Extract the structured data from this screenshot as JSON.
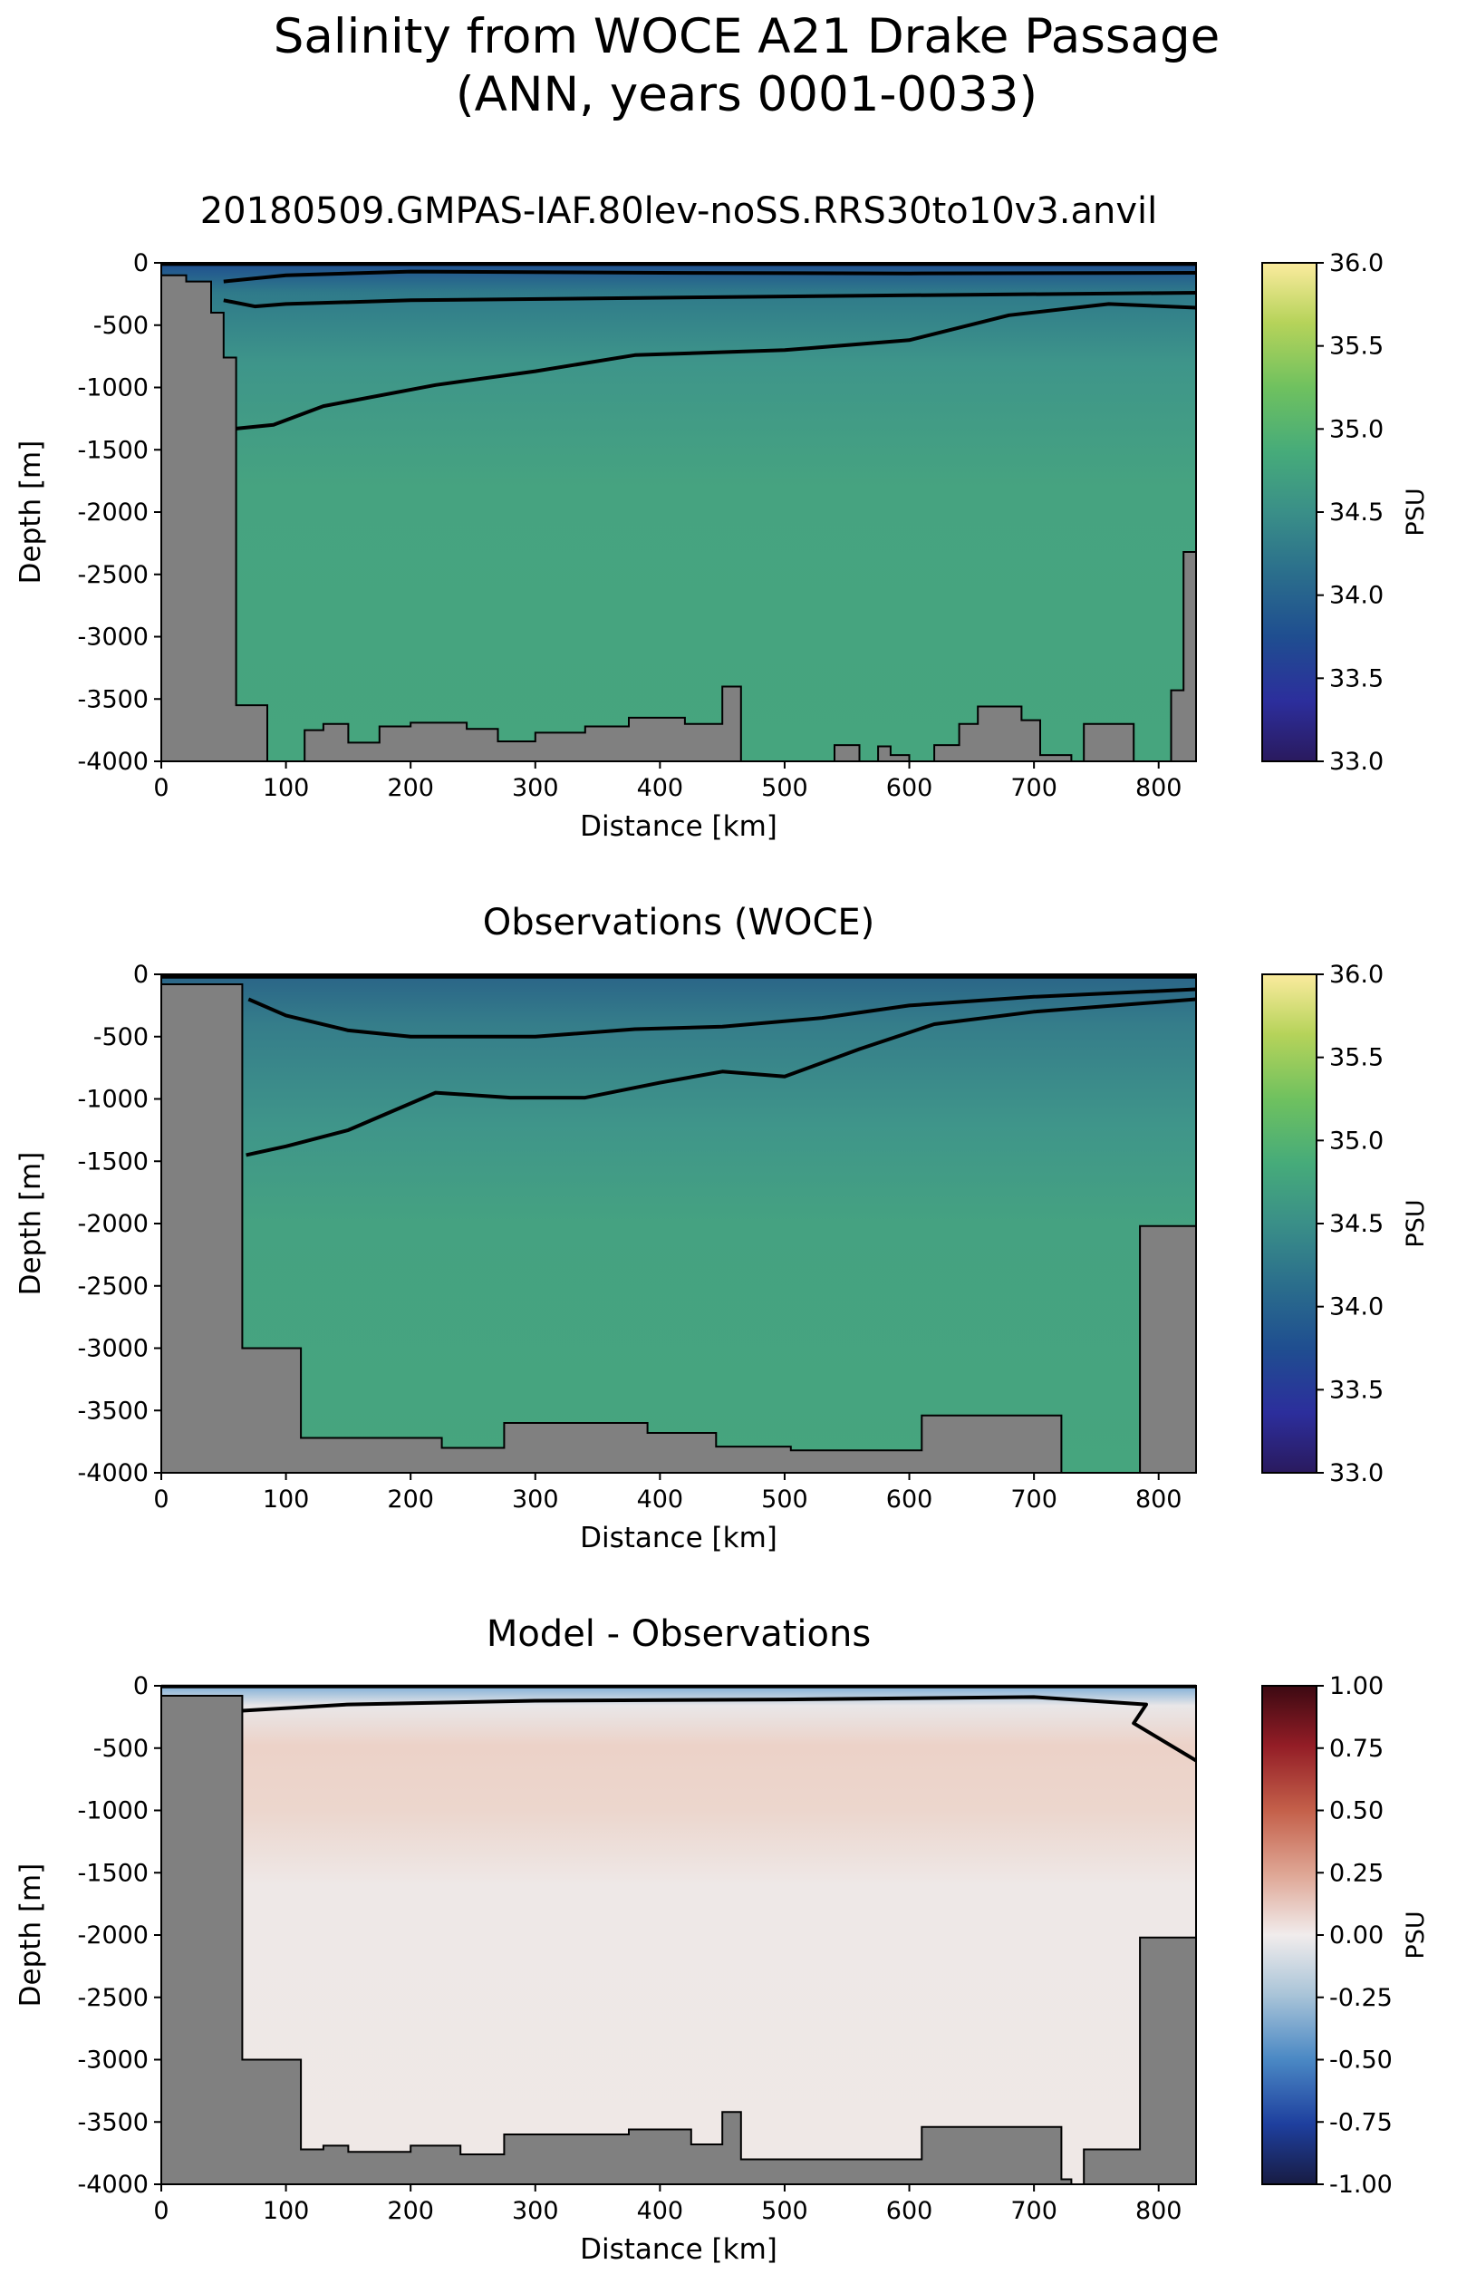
{
  "figure": {
    "title_line1": "Salinity from WOCE A21 Drake Passage",
    "title_line2": "(ANN, years 0001-0033)"
  },
  "colors": {
    "land": "#808080",
    "contour": "#000000"
  },
  "chart_data": [
    {
      "type": "heatmap",
      "title": "20180509.GMPAS-IAF.80lev-noSS.RRS30to10v3.anvil",
      "xlabel": "Distance [km]",
      "ylabel": "Depth [m]",
      "xlim": [
        0,
        830
      ],
      "ylim": [
        -4000,
        0
      ],
      "xticks": [
        "0",
        "100",
        "200",
        "300",
        "400",
        "500",
        "600",
        "700",
        "800"
      ],
      "yticks": [
        "0",
        "-500",
        "-1000",
        "-1500",
        "-2000",
        "-2500",
        "-3000",
        "-3500",
        "-4000"
      ],
      "colorbar": {
        "label": "PSU",
        "range": [
          33.0,
          36.0
        ],
        "ticks": [
          "33.0",
          "33.5",
          "34.0",
          "34.5",
          "35.0",
          "35.5",
          "36.0"
        ],
        "colormap": "haline"
      },
      "fill_value": 34.7,
      "upper_value": 34.3,
      "surface_value": 33.9,
      "contour_lines": [
        [
          [
            0,
            -10
          ],
          [
            830,
            -10
          ]
        ],
        [
          [
            50,
            -150
          ],
          [
            100,
            -100
          ],
          [
            200,
            -70
          ],
          [
            400,
            -80
          ],
          [
            600,
            -85
          ],
          [
            830,
            -80
          ]
        ],
        [
          [
            50,
            -300
          ],
          [
            75,
            -350
          ],
          [
            100,
            -330
          ],
          [
            200,
            -300
          ],
          [
            400,
            -280
          ],
          [
            600,
            -260
          ],
          [
            830,
            -240
          ]
        ],
        [
          [
            60,
            -1330
          ],
          [
            90,
            -1300
          ],
          [
            130,
            -1150
          ],
          [
            220,
            -980
          ],
          [
            300,
            -870
          ],
          [
            380,
            -740
          ],
          [
            500,
            -700
          ],
          [
            600,
            -620
          ],
          [
            680,
            -420
          ],
          [
            760,
            -330
          ],
          [
            830,
            -360
          ]
        ]
      ],
      "bathymetry": [
        [
          0,
          -100
        ],
        [
          20,
          -100
        ],
        [
          20,
          -150
        ],
        [
          40,
          -150
        ],
        [
          40,
          -400
        ],
        [
          50,
          -400
        ],
        [
          50,
          -760
        ],
        [
          60,
          -760
        ],
        [
          60,
          -3550
        ],
        [
          85,
          -3550
        ],
        [
          85,
          -4000
        ],
        [
          115,
          -4000
        ],
        [
          115,
          -3750
        ],
        [
          130,
          -3750
        ],
        [
          130,
          -3700
        ],
        [
          150,
          -3700
        ],
        [
          150,
          -3850
        ],
        [
          175,
          -3850
        ],
        [
          175,
          -3720
        ],
        [
          200,
          -3720
        ],
        [
          200,
          -3690
        ],
        [
          245,
          -3690
        ],
        [
          245,
          -3740
        ],
        [
          270,
          -3740
        ],
        [
          270,
          -3840
        ],
        [
          300,
          -3840
        ],
        [
          300,
          -3770
        ],
        [
          340,
          -3770
        ],
        [
          340,
          -3720
        ],
        [
          375,
          -3720
        ],
        [
          375,
          -3650
        ],
        [
          420,
          -3650
        ],
        [
          420,
          -3700
        ],
        [
          450,
          -3700
        ],
        [
          450,
          -3400
        ],
        [
          465,
          -3400
        ],
        [
          465,
          -4000
        ],
        [
          540,
          -4000
        ],
        [
          540,
          -3870
        ],
        [
          560,
          -3870
        ],
        [
          560,
          -4000
        ],
        [
          575,
          -4000
        ],
        [
          575,
          -3880
        ],
        [
          585,
          -3880
        ],
        [
          585,
          -3950
        ],
        [
          600,
          -3950
        ],
        [
          600,
          -4000
        ],
        [
          620,
          -4000
        ],
        [
          620,
          -3870
        ],
        [
          640,
          -3870
        ],
        [
          640,
          -3700
        ],
        [
          655,
          -3700
        ],
        [
          655,
          -3560
        ],
        [
          690,
          -3560
        ],
        [
          690,
          -3670
        ],
        [
          705,
          -3670
        ],
        [
          705,
          -3950
        ],
        [
          730,
          -3950
        ],
        [
          730,
          -4000
        ],
        [
          740,
          -4000
        ],
        [
          740,
          -3700
        ],
        [
          780,
          -3700
        ],
        [
          780,
          -4000
        ],
        [
          810,
          -4000
        ],
        [
          810,
          -3430
        ],
        [
          820,
          -3430
        ],
        [
          820,
          -2320
        ],
        [
          830,
          -2320
        ]
      ]
    },
    {
      "type": "heatmap",
      "title": "Observations (WOCE)",
      "xlabel": "Distance [km]",
      "ylabel": "Depth [m]",
      "xlim": [
        0,
        830
      ],
      "ylim": [
        -4000,
        0
      ],
      "xticks": [
        "0",
        "100",
        "200",
        "300",
        "400",
        "500",
        "600",
        "700",
        "800"
      ],
      "yticks": [
        "0",
        "-500",
        "-1000",
        "-1500",
        "-2000",
        "-2500",
        "-3000",
        "-3500",
        "-4000"
      ],
      "colorbar": {
        "label": "PSU",
        "range": [
          33.0,
          36.0
        ],
        "ticks": [
          "33.0",
          "33.5",
          "34.0",
          "34.5",
          "35.0",
          "35.5",
          "36.0"
        ],
        "colormap": "haline"
      },
      "fill_value": 34.7,
      "upper_value": 34.2,
      "surface_value": 34.0,
      "contour_lines": [
        [
          [
            0,
            -20
          ],
          [
            830,
            -20
          ]
        ],
        [
          [
            70,
            -200
          ],
          [
            100,
            -330
          ],
          [
            150,
            -450
          ],
          [
            200,
            -500
          ],
          [
            300,
            -500
          ],
          [
            380,
            -440
          ],
          [
            450,
            -420
          ],
          [
            530,
            -350
          ],
          [
            600,
            -250
          ],
          [
            700,
            -180
          ],
          [
            830,
            -120
          ]
        ],
        [
          [
            68,
            -1450
          ],
          [
            100,
            -1380
          ],
          [
            150,
            -1250
          ],
          [
            220,
            -950
          ],
          [
            280,
            -990
          ],
          [
            340,
            -990
          ],
          [
            400,
            -870
          ],
          [
            450,
            -780
          ],
          [
            500,
            -820
          ],
          [
            560,
            -600
          ],
          [
            620,
            -400
          ],
          [
            700,
            -300
          ],
          [
            830,
            -200
          ]
        ]
      ],
      "bathymetry": [
        [
          0,
          -80
        ],
        [
          65,
          -80
        ],
        [
          65,
          -3000
        ],
        [
          112,
          -3000
        ],
        [
          112,
          -3720
        ],
        [
          225,
          -3720
        ],
        [
          225,
          -3800
        ],
        [
          275,
          -3800
        ],
        [
          275,
          -3600
        ],
        [
          390,
          -3600
        ],
        [
          390,
          -3680
        ],
        [
          445,
          -3680
        ],
        [
          445,
          -3790
        ],
        [
          505,
          -3790
        ],
        [
          505,
          -3820
        ],
        [
          610,
          -3820
        ],
        [
          610,
          -3540
        ],
        [
          722,
          -3540
        ],
        [
          722,
          -4000
        ],
        [
          785,
          -4000
        ],
        [
          785,
          -2020
        ],
        [
          830,
          -2020
        ]
      ]
    },
    {
      "type": "heatmap",
      "title": "Model - Observations",
      "xlabel": "Distance [km]",
      "ylabel": "Depth [m]",
      "xlim": [
        0,
        830
      ],
      "ylim": [
        -4000,
        0
      ],
      "xticks": [
        "0",
        "100",
        "200",
        "300",
        "400",
        "500",
        "600",
        "700",
        "800"
      ],
      "yticks": [
        "0",
        "-500",
        "-1000",
        "-1500",
        "-2000",
        "-2500",
        "-3000",
        "-3500",
        "-4000"
      ],
      "colorbar": {
        "label": "PSU",
        "range": [
          -1.0,
          1.0
        ],
        "ticks": [
          "-1.00",
          "-0.75",
          "-0.50",
          "-0.25",
          "0.00",
          "0.25",
          "0.50",
          "0.75",
          "1.00"
        ],
        "colormap": "balance"
      },
      "fill_value": 0.02,
      "upper_value": 0.15,
      "surface_value": -0.4,
      "contour_lines": [
        [
          [
            0,
            -5
          ],
          [
            830,
            -5
          ]
        ],
        [
          [
            65,
            -200
          ],
          [
            150,
            -150
          ],
          [
            300,
            -120
          ],
          [
            500,
            -110
          ],
          [
            700,
            -90
          ],
          [
            790,
            -150
          ],
          [
            780,
            -300
          ],
          [
            830,
            -600
          ]
        ]
      ],
      "bathymetry": [
        [
          0,
          -80
        ],
        [
          65,
          -80
        ],
        [
          65,
          -3000
        ],
        [
          112,
          -3000
        ],
        [
          112,
          -3720
        ],
        [
          130,
          -3720
        ],
        [
          130,
          -3690
        ],
        [
          150,
          -3690
        ],
        [
          150,
          -3740
        ],
        [
          200,
          -3740
        ],
        [
          200,
          -3690
        ],
        [
          240,
          -3690
        ],
        [
          240,
          -3760
        ],
        [
          275,
          -3760
        ],
        [
          275,
          -3600
        ],
        [
          375,
          -3600
        ],
        [
          375,
          -3560
        ],
        [
          425,
          -3560
        ],
        [
          425,
          -3680
        ],
        [
          450,
          -3680
        ],
        [
          450,
          -3420
        ],
        [
          465,
          -3420
        ],
        [
          465,
          -3800
        ],
        [
          610,
          -3800
        ],
        [
          610,
          -3540
        ],
        [
          722,
          -3540
        ],
        [
          722,
          -3960
        ],
        [
          730,
          -3960
        ],
        [
          730,
          -4000
        ],
        [
          740,
          -4000
        ],
        [
          740,
          -3720
        ],
        [
          785,
          -3720
        ],
        [
          785,
          -2020
        ],
        [
          830,
          -2020
        ]
      ]
    }
  ]
}
